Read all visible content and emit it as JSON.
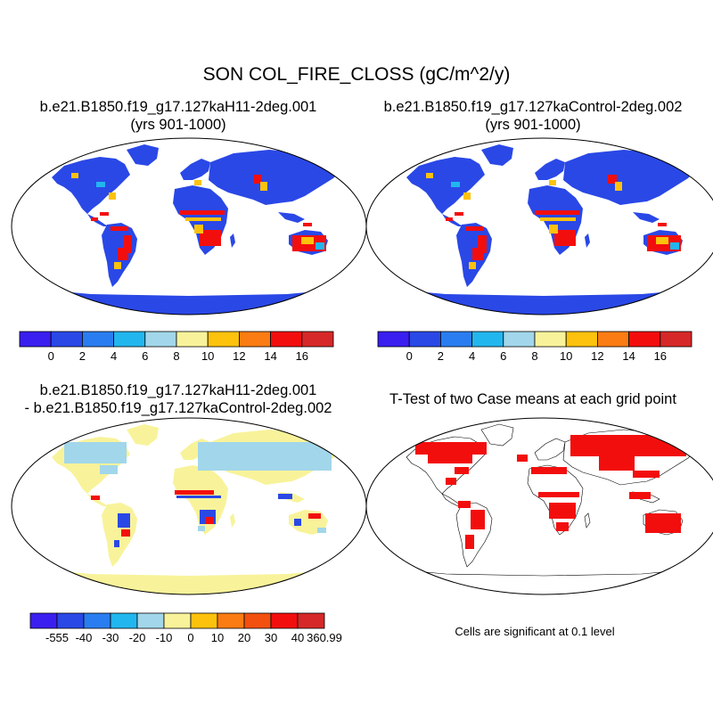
{
  "figure": {
    "title": "SON COL_FIRE_CLOSS (gC/m^2/y)",
    "panels": [
      {
        "title_line1": "b.e21.B1850.f19_g17.127kaH11-2deg.001",
        "title_line2": "(yrs 901-1000)"
      },
      {
        "title_line1": "b.e21.B1850.f19_g17.127kaControl-2deg.002",
        "title_line2": "(yrs 901-1000)"
      },
      {
        "title_line1": "b.e21.B1850.f19_g17.127kaH11-2deg.001",
        "title_line2": "- b.e21.B1850.f19_g17.127kaControl-2deg.002"
      },
      {
        "title_line1": "T-Test of two Case means at each grid point"
      }
    ],
    "significance_note": "Cells are significant at 0.1 level"
  },
  "colorbars": {
    "field": {
      "colors": [
        "#3a1ff0",
        "#2a48e6",
        "#2a7df0",
        "#22b6ee",
        "#a2d6ea",
        "#f8f39a",
        "#fcc20d",
        "#fa7c12",
        "#f30e0e",
        "#d62828"
      ],
      "labels": [
        "0",
        "2",
        "4",
        "6",
        "8",
        "10",
        "12",
        "14",
        "16"
      ]
    },
    "diff": {
      "colors": [
        "#3a1ff0",
        "#2a48e6",
        "#2a7df0",
        "#22b6ee",
        "#a2d6ea",
        "#f8f39a",
        "#fcc20d",
        "#fa7c12",
        "#f34f0e",
        "#f30e0e",
        "#d62828"
      ],
      "labels": [
        "-555",
        "-40",
        "-30",
        "-20",
        "-10",
        "0",
        "10",
        "20",
        "30",
        "40",
        "360.99"
      ]
    }
  },
  "map_colors": {
    "panel1": {
      "land": "#2a48e6",
      "hot": "#f30e0e",
      "warm": "#fcc20d",
      "cool": "#22b6ee"
    },
    "panel2": {
      "land": "#2a48e6",
      "hot": "#f30e0e",
      "warm": "#fcc20d",
      "cool": "#22b6ee"
    },
    "panel3": {
      "land": "#f8f39a",
      "cool": "#a2d6ea",
      "neg": "#2a48e6",
      "pos": "#f30e0e"
    },
    "panel4": {
      "land": "#ffffff",
      "sig": "#f30e0e"
    }
  }
}
